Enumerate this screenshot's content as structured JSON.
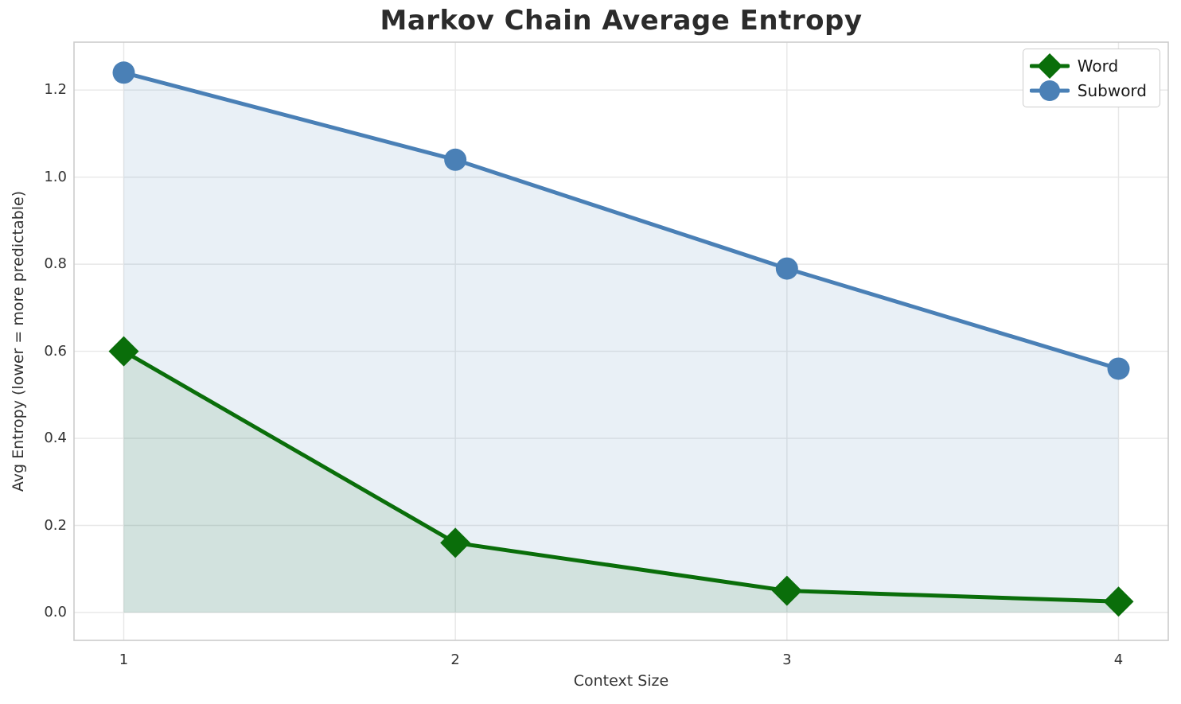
{
  "chart_data": {
    "type": "line",
    "title": "Markov Chain Average Entropy",
    "xlabel": "Context Size",
    "ylabel": "Avg Entropy (lower = more predictable)",
    "x": [
      1,
      2,
      3,
      4
    ],
    "series": [
      {
        "name": "Word",
        "values": [
          0.6,
          0.16,
          0.05,
          0.025
        ],
        "color": "#0a6e0a",
        "marker": "diamond",
        "fill_to_zero": true,
        "fill_opacity": 0.1
      },
      {
        "name": "Subword",
        "values": [
          1.24,
          1.04,
          0.79,
          0.56
        ],
        "color": "#4a80b6",
        "marker": "circle",
        "fill_to_zero": true,
        "fill_opacity": 0.12
      }
    ],
    "xlim": [
      0.85,
      4.15
    ],
    "ylim": [
      -0.064,
      1.31
    ],
    "xticks": [
      1,
      2,
      3,
      4
    ],
    "xtick_labels": [
      "1",
      "2",
      "3",
      "4"
    ],
    "yticks": [
      0.0,
      0.2,
      0.4,
      0.6,
      0.8,
      1.0,
      1.2
    ],
    "ytick_labels": [
      "0.0",
      "0.2",
      "0.4",
      "0.6",
      "0.8",
      "1.0",
      "1.2"
    ],
    "grid": true,
    "legend": {
      "position": "upper right",
      "entries": [
        "Word",
        "Subword"
      ]
    },
    "styles": {
      "grid_color": "#e7e7e7",
      "spine_color": "#cccccc",
      "line_width": 5,
      "marker_circle_radius": 14,
      "marker_diamond_radius": 19,
      "background": "#ffffff"
    }
  }
}
